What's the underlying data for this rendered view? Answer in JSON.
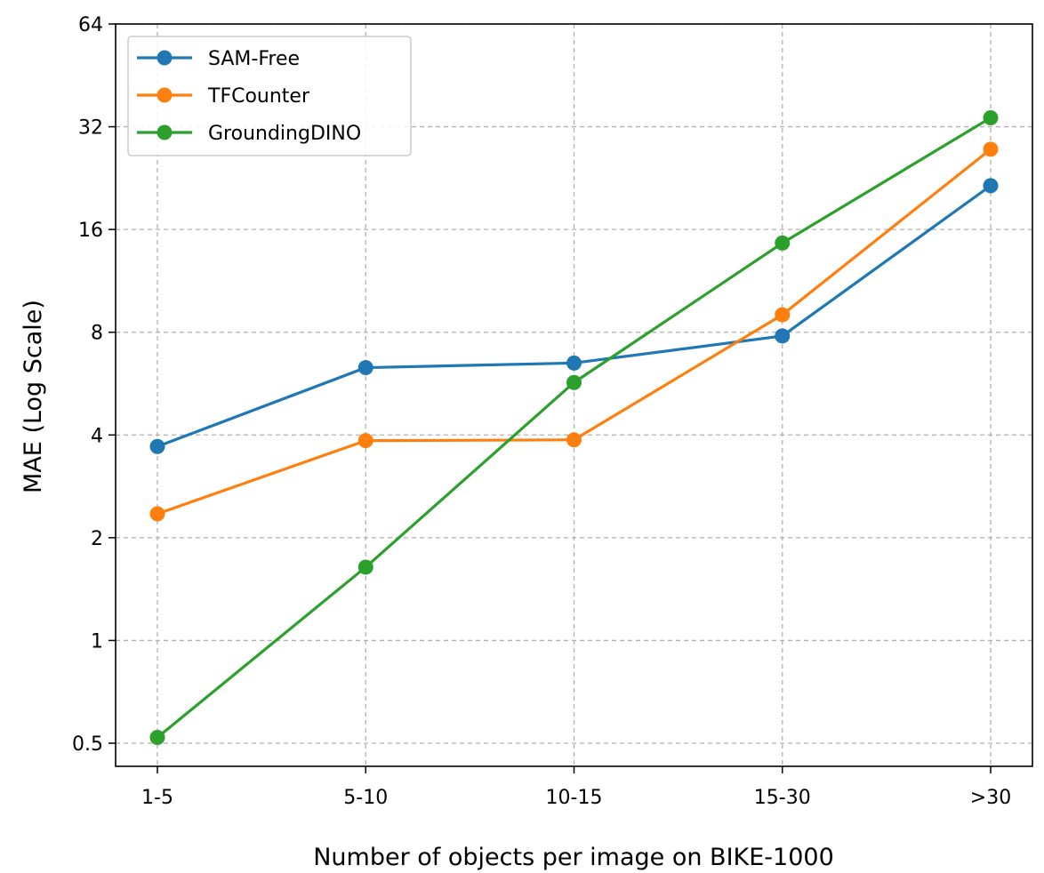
{
  "chart_data": {
    "type": "line",
    "title": "",
    "xlabel": "Number of objects per image on BIKE-1000",
    "ylabel": "MAE (Log Scale)",
    "categories": [
      "1-5",
      "5-10",
      "10-15",
      "15-30",
      ">30"
    ],
    "y_scale": "log2",
    "ylim": [
      0.44,
      64
    ],
    "y_ticks": [
      0.5,
      1,
      2,
      4,
      8,
      16,
      32,
      64
    ],
    "y_tick_labels": [
      "0.5",
      "1",
      "2",
      "4",
      "8",
      "16",
      "32",
      "64"
    ],
    "grid": true,
    "legend_position": "top-left",
    "series": [
      {
        "name": "SAM-Free",
        "color": "#1f77b4",
        "values": [
          3.7,
          6.3,
          6.5,
          7.8,
          21.5
        ]
      },
      {
        "name": "TFCounter",
        "color": "#ff7f0e",
        "values": [
          2.35,
          3.85,
          3.87,
          9.0,
          27.5
        ]
      },
      {
        "name": "GroundingDINO",
        "color": "#2ca02c",
        "values": [
          0.52,
          1.64,
          5.7,
          14.6,
          34.0
        ]
      }
    ]
  }
}
